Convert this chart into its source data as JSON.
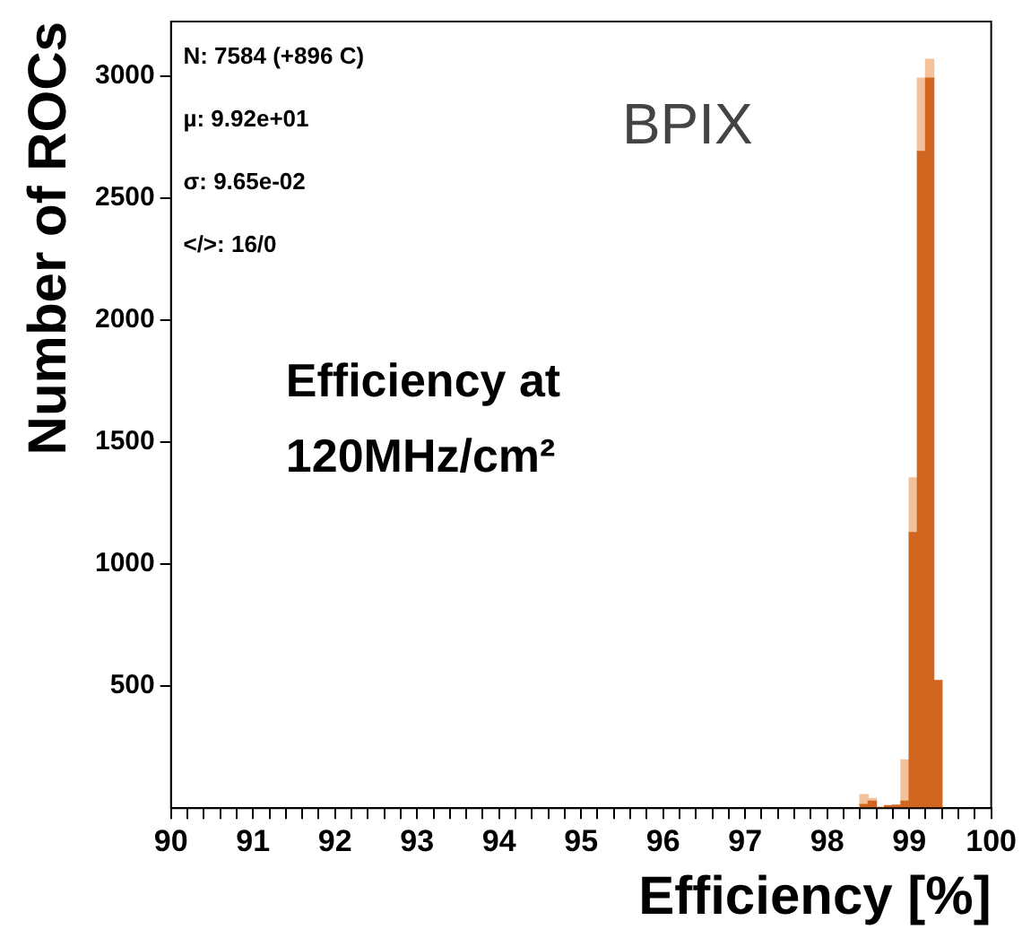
{
  "chart_data": {
    "type": "bar",
    "xlabel": "Efficiency [%]",
    "ylabel": "Number of ROCs",
    "stacked": true,
    "x": [
      98.45,
      98.55,
      98.65,
      98.75,
      98.85,
      98.95,
      99.05,
      99.15,
      99.25,
      99.35
    ],
    "series": [
      {
        "color": "#d0661f",
        "values": [
          15,
          29,
          0,
          10,
          12,
          29,
          1130,
          2692,
          2993,
          523
        ]
      },
      {
        "color": "#f2c29c",
        "values": [
          40,
          11,
          5,
          null,
          null,
          169,
          224,
          301,
          77,
          0
        ]
      }
    ],
    "xlim": [
      90,
      100
    ],
    "xticks": [
      90,
      {
        "value": 90.2,
        "label": null
      },
      {
        "value": 90.4,
        "label": null
      },
      {
        "value": 90.6,
        "label": null
      },
      {
        "value": 90.8,
        "label": null
      },
      91,
      {
        "value": 91.2,
        "label": null
      },
      {
        "value": 91.4,
        "label": null
      },
      {
        "value": 91.6,
        "label": null
      },
      {
        "value": 91.8,
        "label": null
      },
      92,
      {
        "value": 92.2,
        "label": null
      },
      {
        "value": 92.4,
        "label": null
      },
      {
        "value": 92.6,
        "label": null
      },
      {
        "value": 92.8,
        "label": null
      },
      93,
      {
        "value": 93.2,
        "label": null
      },
      {
        "value": 93.4,
        "label": null
      },
      {
        "value": 93.6,
        "label": null
      },
      {
        "value": 93.8,
        "label": null
      },
      94,
      {
        "value": 94.2,
        "label": null
      },
      {
        "value": 94.4,
        "label": null
      },
      {
        "value": 94.6,
        "label": null
      },
      {
        "value": 94.8,
        "label": null
      },
      95,
      {
        "value": 95.2,
        "label": null
      },
      {
        "value": 95.4,
        "label": null
      },
      {
        "value": 95.6,
        "label": null
      },
      {
        "value": 95.8,
        "label": null
      },
      96,
      {
        "value": 96.2,
        "label": null
      },
      {
        "value": 96.4,
        "label": null
      },
      {
        "value": 96.6,
        "label": null
      },
      {
        "value": 96.8,
        "label": null
      },
      97,
      {
        "value": 97.2,
        "label": null
      },
      {
        "value": 97.4,
        "label": null
      },
      {
        "value": 97.6,
        "label": null
      },
      {
        "value": 97.8,
        "label": null
      },
      98,
      {
        "value": 98.2,
        "label": null
      },
      {
        "value": 98.4,
        "label": null
      },
      {
        "value": 98.6,
        "label": null
      },
      {
        "value": 98.8,
        "label": null
      },
      99,
      {
        "value": 99.2,
        "label": null
      },
      {
        "value": 99.4,
        "label": null
      },
      {
        "value": 99.6,
        "label": null
      },
      {
        "value": 99.8,
        "label": null
      },
      100
    ],
    "ylim": [
      0,
      3225
    ],
    "yticks": [
      500,
      1000,
      1500,
      2000,
      2500,
      3000
    ],
    "grid": false,
    "legend": false,
    "annotations": [
      "N: 7584 (+896 C)",
      "µ: 9.92e+01",
      "σ: 9.65e-02",
      "</>: 16/0",
      "BPIX",
      "Efficiency at\n120MHz/cm²"
    ]
  }
}
